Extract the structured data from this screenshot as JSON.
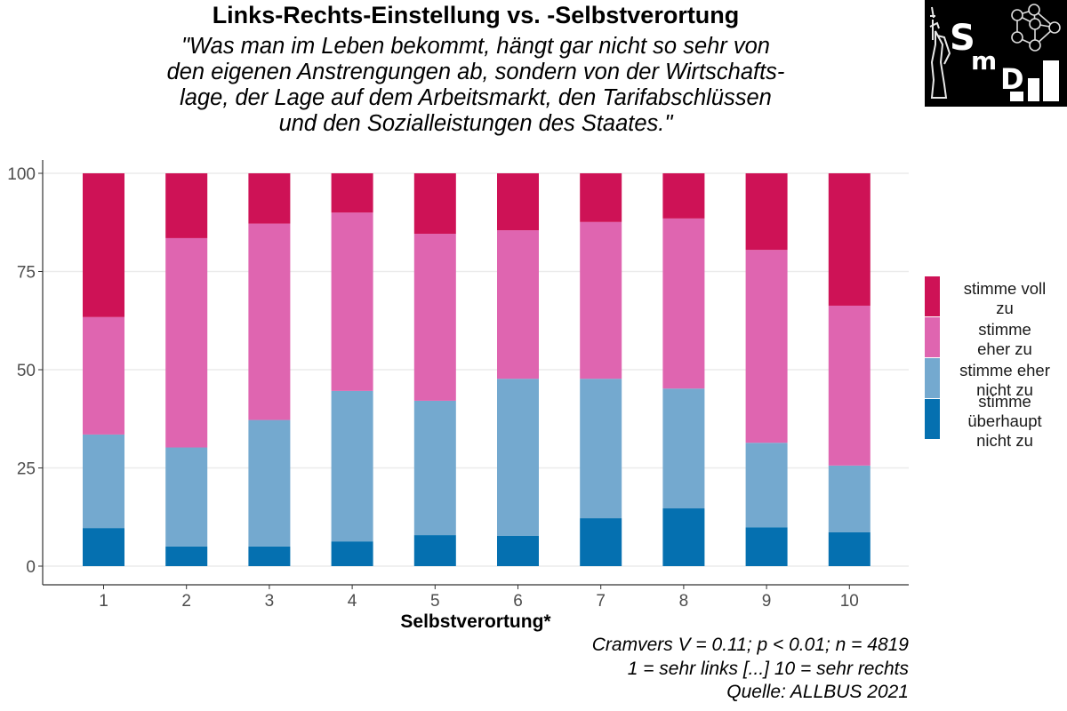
{
  "title": "Links-Rechts-Einstellung vs. -Selbstverortung",
  "subtitle_lines": [
    "\"Was man im Leben bekommt, hängt gar nicht so sehr von",
    "den eigenen Anstrengungen ab, sondern von der Wirtschafts-",
    "lage, der Lage auf dem Arbeitsmarkt, den Tarifabschlüssen",
    "und den Sozialleistungen des Staates.\""
  ],
  "logo": {
    "text_s": "S",
    "text_m": "m",
    "text_d": "D",
    "icon": "statue-of-liberty-network-bars-logo"
  },
  "footer": {
    "stats": "Cramvers V = 0.11; p < 0.01; n = 4819",
    "scale_note": "1 = sehr links [...] 10 = sehr rechts",
    "source": "Quelle: ALLBUS 2021"
  },
  "chart_data": {
    "type": "bar",
    "stacked": true,
    "title": "Links-Rechts-Einstellung vs. -Selbstverortung",
    "xlabel": "Selbstverortung*",
    "ylabel": "",
    "ylim": [
      0,
      100
    ],
    "yticks": [
      0,
      25,
      50,
      75,
      100
    ],
    "grid": true,
    "legend_position": "right",
    "categories": [
      "1",
      "2",
      "3",
      "4",
      "5",
      "6",
      "7",
      "8",
      "9",
      "10"
    ],
    "series": [
      {
        "name": "stimme überhaupt nicht zu",
        "label_lines": [
          "stimme",
          "überhaupt",
          "nicht zu"
        ],
        "color": "#0570b0",
        "values": [
          9.7,
          5.0,
          5.0,
          6.3,
          7.9,
          7.7,
          12.2,
          14.7,
          9.9,
          8.6
        ]
      },
      {
        "name": "stimme eher nicht zu",
        "label_lines": [
          "stimme eher",
          "nicht zu"
        ],
        "color": "#74a9cf",
        "values": [
          23.8,
          25.2,
          32.2,
          38.3,
          34.2,
          40.0,
          35.5,
          30.5,
          21.5,
          17.0
        ]
      },
      {
        "name": "stimme eher zu",
        "label_lines": [
          "stimme",
          "eher zu"
        ],
        "color": "#df65b0",
        "values": [
          29.9,
          53.3,
          50.0,
          45.4,
          42.5,
          37.8,
          39.9,
          43.3,
          49.1,
          40.7
        ]
      },
      {
        "name": "stimme voll zu",
        "label_lines": [
          "stimme voll",
          "zu"
        ],
        "color": "#ce1256",
        "values": [
          36.6,
          16.5,
          12.8,
          10.0,
          15.4,
          14.5,
          12.4,
          11.5,
          19.5,
          33.7
        ]
      }
    ]
  }
}
